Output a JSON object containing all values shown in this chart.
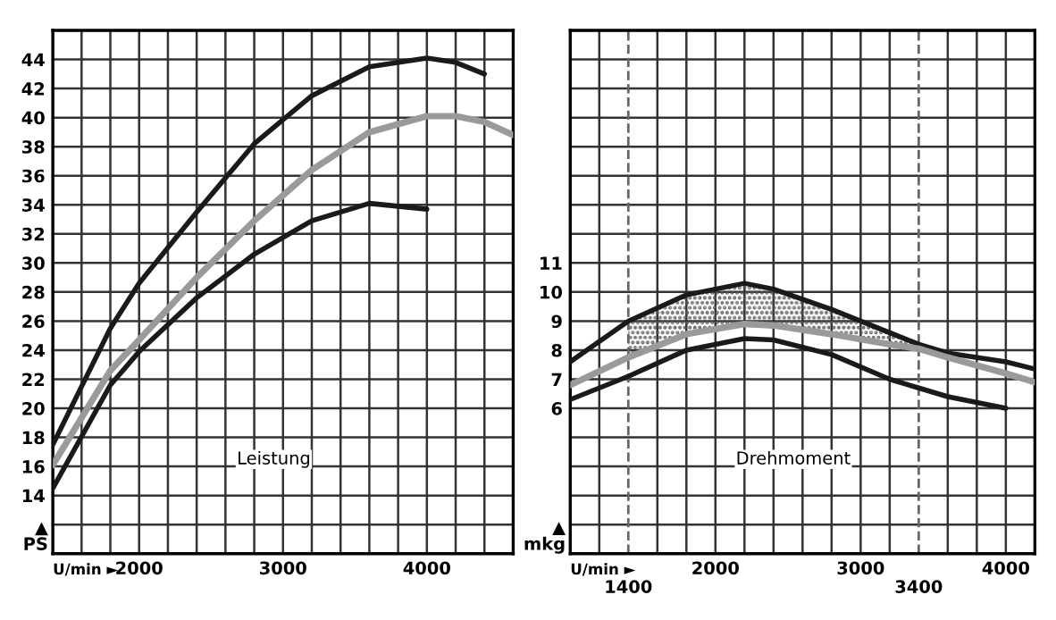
{
  "chart_data": [
    {
      "type": "line",
      "xlabel": "U/min ►",
      "ylabel": "▲\nPS",
      "annotations": [
        "Leistung"
      ],
      "x": [
        1400,
        1800,
        2000,
        2400,
        2800,
        3200,
        3600,
        4000,
        4200,
        4400,
        4600
      ],
      "series": [
        {
          "color": "#1a1a1a",
          "values": [
            17.5,
            25.5,
            28.6,
            33.5,
            38.2,
            41.5,
            43.5,
            44.1,
            43.8,
            43.0,
            null
          ]
        },
        {
          "color": "#9a9a9a",
          "values": [
            16.1,
            22.6,
            24.7,
            29.0,
            32.9,
            36.4,
            39.0,
            40.1,
            40.1,
            39.7,
            38.8
          ]
        },
        {
          "color": "#1a1a1a",
          "values": [
            14.5,
            21.6,
            23.9,
            27.6,
            30.6,
            32.9,
            34.1,
            33.7,
            null,
            null,
            null
          ]
        }
      ],
      "xlim": [
        1400,
        4600
      ],
      "ylim": [
        10,
        46
      ],
      "xticks": [
        {
          "value": 1400,
          "label": null
        },
        {
          "value": 1600,
          "label": null
        },
        {
          "value": 1800,
          "label": null
        },
        2000,
        {
          "value": 2200,
          "label": null
        },
        {
          "value": 2400,
          "label": null
        },
        {
          "value": 2600,
          "label": null
        },
        {
          "value": 2800,
          "label": null
        },
        3000,
        {
          "value": 3200,
          "label": null
        },
        {
          "value": 3400,
          "label": null
        },
        {
          "value": 3600,
          "label": null
        },
        {
          "value": 3800,
          "label": null
        },
        4000,
        {
          "value": 4200,
          "label": null
        },
        {
          "value": 4400,
          "label": null
        },
        {
          "value": 4600,
          "label": null
        }
      ],
      "yticks": [
        {
          "value": 10,
          "label": null
        },
        {
          "value": 12,
          "label": null
        },
        14,
        16,
        18,
        20,
        22,
        24,
        26,
        28,
        30,
        32,
        34,
        36,
        38,
        40,
        42,
        44,
        {
          "value": 46,
          "label": null
        }
      ],
      "grid": true,
      "legend": false,
      "marker": "none",
      "line_style": "solid"
    },
    {
      "type": "line",
      "xlabel": "U/min ►",
      "ylabel": "▲\nmkg",
      "annotations": [
        "Drehmoment"
      ],
      "x": [
        1000,
        1400,
        1800,
        2200,
        2400,
        2800,
        3200,
        3400,
        3600,
        4000,
        4200
      ],
      "series": [
        {
          "color": "#1a1a1a",
          "values": [
            7.6,
            9.0,
            9.9,
            10.3,
            10.1,
            9.4,
            8.6,
            8.2,
            7.9,
            7.6,
            7.35
          ],
          "lower": [
            null,
            7.75,
            8.55,
            8.9,
            8.85,
            8.55,
            8.2,
            8.05,
            null,
            null,
            null
          ],
          "upper": [
            null,
            9.0,
            9.9,
            10.3,
            10.1,
            9.4,
            8.6,
            8.2,
            null,
            null,
            null
          ]
        },
        {
          "color": "#9a9a9a",
          "values": [
            6.8,
            7.75,
            8.55,
            8.9,
            8.85,
            8.55,
            8.2,
            8.05,
            7.75,
            7.2,
            6.9
          ]
        },
        {
          "color": "#1a1a1a",
          "values": [
            6.3,
            7.1,
            8.0,
            8.4,
            8.35,
            7.85,
            7.0,
            6.7,
            6.4,
            6.0,
            null
          ]
        }
      ],
      "ref_lines": [
        {
          "axis": "x",
          "value": 1400,
          "label": "1400",
          "color": "#666666",
          "line_style": "dashed"
        },
        {
          "axis": "x",
          "value": 3400,
          "label": "3400",
          "color": "#666666",
          "line_style": "dashed"
        }
      ],
      "xlim": [
        1000,
        4200
      ],
      "ylim": [
        1,
        19
      ],
      "xticks": [
        {
          "value": 1000,
          "label": null
        },
        {
          "value": 1200,
          "label": null
        },
        {
          "value": 1600,
          "label": null
        },
        {
          "value": 1800,
          "label": null
        },
        2000,
        {
          "value": 2200,
          "label": null
        },
        {
          "value": 2400,
          "label": null
        },
        {
          "value": 2600,
          "label": null
        },
        {
          "value": 2800,
          "label": null
        },
        3000,
        {
          "value": 3200,
          "label": null
        },
        {
          "value": 3600,
          "label": null
        },
        {
          "value": 3800,
          "label": null
        },
        4000,
        {
          "value": 4200,
          "label": null
        }
      ],
      "yticks": [
        {
          "value": 1,
          "label": null
        },
        {
          "value": 2,
          "label": null
        },
        {
          "value": 3,
          "label": null
        },
        {
          "value": 4,
          "label": null
        },
        {
          "value": 5,
          "label": null
        },
        6,
        7,
        8,
        9,
        10,
        11,
        {
          "value": 12,
          "label": null
        },
        {
          "value": 13,
          "label": null
        },
        {
          "value": 14,
          "label": null
        },
        {
          "value": 15,
          "label": null
        },
        {
          "value": 16,
          "label": null
        },
        {
          "value": 17,
          "label": null
        },
        {
          "value": 18,
          "label": null
        },
        {
          "value": 19,
          "label": null
        }
      ],
      "grid": true,
      "legend": false,
      "marker": "none",
      "line_style": "solid"
    }
  ]
}
